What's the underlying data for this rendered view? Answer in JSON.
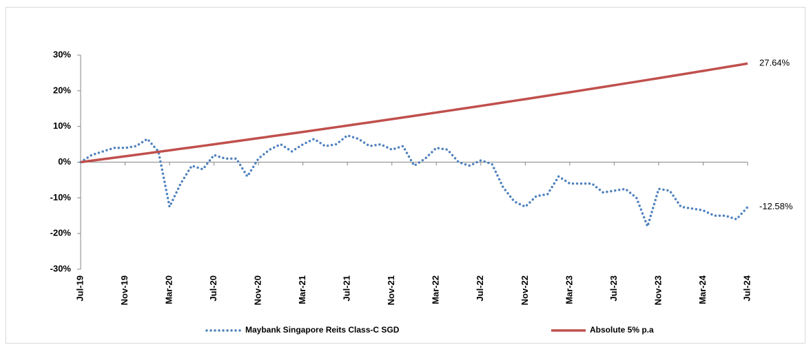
{
  "chart_data": {
    "type": "line",
    "categories": [
      "Jul-19",
      null,
      null,
      null,
      "Nov-19",
      null,
      null,
      null,
      "Mar-20",
      null,
      null,
      null,
      "Jul-20",
      null,
      null,
      null,
      "Nov-20",
      null,
      null,
      null,
      "Mar-21",
      null,
      null,
      null,
      "Jul-21",
      null,
      null,
      null,
      "Nov-21",
      null,
      null,
      null,
      "Mar-22",
      null,
      null,
      null,
      "Jul-22",
      null,
      null,
      null,
      "Nov-22",
      null,
      null,
      null,
      "Mar-23",
      null,
      null,
      null,
      "Jul-23",
      null,
      null,
      null,
      "Nov-23",
      null,
      null,
      null,
      "Mar-24",
      null,
      null,
      null,
      "Jul-24"
    ],
    "series": [
      {
        "name": "Maybank Singapore Reits Class-C SGD",
        "color": "#4f81bd",
        "dotted": true,
        "values": [
          0,
          2,
          3,
          4,
          4,
          4.5,
          6.5,
          3,
          -12.5,
          -6,
          -1,
          -2,
          2,
          1,
          1,
          -4,
          1,
          3.5,
          5,
          3,
          5,
          6.5,
          4.5,
          5,
          7.5,
          6.5,
          4.5,
          5,
          3.5,
          4.5,
          -1,
          1,
          4,
          3.5,
          0,
          -1,
          0.5,
          -0.5,
          -7,
          -11,
          -12.5,
          -9.5,
          -9,
          -4,
          -6,
          -6,
          -6,
          -8.5,
          -8,
          -7.5,
          -10,
          -18,
          -7.5,
          -8,
          -12.5,
          -13,
          -13.5,
          -15,
          -15,
          -16,
          -12.58
        ],
        "value_labels": [
          null,
          null,
          null,
          null,
          null,
          null,
          null,
          null,
          null,
          null,
          null,
          null,
          null,
          null,
          null,
          null,
          null,
          null,
          null,
          null,
          null,
          null,
          null,
          null,
          null,
          null,
          null,
          null,
          null,
          null,
          null,
          null,
          null,
          null,
          null,
          null,
          null,
          null,
          null,
          null,
          null,
          null,
          null,
          null,
          null,
          null,
          null,
          null,
          null,
          null,
          null,
          null,
          null,
          null,
          null,
          null,
          null,
          null,
          null,
          null,
          "-12.58%"
        ]
      },
      {
        "name": "Absolute 5% p.a",
        "color": "#c0504d",
        "dotted": false,
        "values": [
          0,
          0.41,
          0.82,
          1.23,
          1.64,
          2.05,
          2.47,
          2.89,
          3.31,
          3.73,
          4.15,
          4.57,
          5,
          5.43,
          5.86,
          6.29,
          6.72,
          7.16,
          7.59,
          8.03,
          8.47,
          8.91,
          9.36,
          9.8,
          10.25,
          10.7,
          11.15,
          11.6,
          12.06,
          12.51,
          12.97,
          13.43,
          13.9,
          14.36,
          14.83,
          15.29,
          15.76,
          16.23,
          16.71,
          17.18,
          17.66,
          18.14,
          18.62,
          19.11,
          19.59,
          20.08,
          20.57,
          21.06,
          21.55,
          22.05,
          22.54,
          23.04,
          23.54,
          24.05,
          24.55,
          25.06,
          25.57,
          26.08,
          26.6,
          27.11,
          27.64
        ],
        "value_labels": [
          null,
          null,
          null,
          null,
          null,
          null,
          null,
          null,
          null,
          null,
          null,
          null,
          null,
          null,
          null,
          null,
          null,
          null,
          null,
          null,
          null,
          null,
          null,
          null,
          null,
          null,
          null,
          null,
          null,
          null,
          null,
          null,
          null,
          null,
          null,
          null,
          null,
          null,
          null,
          null,
          null,
          null,
          null,
          null,
          null,
          null,
          null,
          null,
          null,
          null,
          null,
          null,
          null,
          null,
          null,
          null,
          null,
          null,
          null,
          null,
          "27.64%"
        ]
      }
    ],
    "ylim": [
      -30,
      30
    ],
    "yticks": [
      {
        "value": -30,
        "label": "-30%"
      },
      {
        "value": -20,
        "label": "-20%"
      },
      {
        "value": -10,
        "label": "-10%"
      },
      {
        "value": 0,
        "label": "0%"
      },
      {
        "value": 10,
        "label": "10%"
      },
      {
        "value": 20,
        "label": "20%"
      },
      {
        "value": 30,
        "label": "30%"
      }
    ],
    "grid": false,
    "legend": "bottom"
  }
}
